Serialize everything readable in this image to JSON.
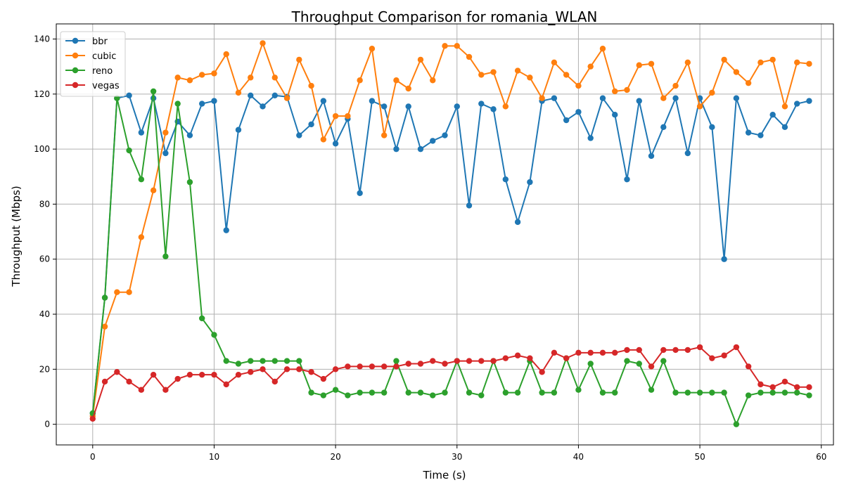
{
  "chart_data": {
    "type": "line",
    "title": "Throughput Comparison for romania_WLAN",
    "xlabel": "Time (s)",
    "ylabel": "Throughput (Mbps)",
    "xlim": [
      -3,
      61
    ],
    "ylim": [
      -7.5,
      145.5
    ],
    "xticks": [
      0,
      10,
      20,
      30,
      40,
      50,
      60
    ],
    "yticks": [
      0,
      20,
      40,
      60,
      80,
      100,
      120,
      140
    ],
    "grid": true,
    "legend": "top-left",
    "x": [
      0,
      1,
      2,
      3,
      4,
      5,
      6,
      7,
      8,
      9,
      10,
      11,
      12,
      13,
      14,
      15,
      16,
      17,
      18,
      19,
      20,
      21,
      22,
      23,
      24,
      25,
      26,
      27,
      28,
      29,
      30,
      31,
      32,
      33,
      34,
      35,
      36,
      37,
      38,
      39,
      40,
      41,
      42,
      43,
      44,
      45,
      46,
      47,
      48,
      49,
      50,
      51,
      52,
      53,
      54,
      55,
      56,
      57,
      58,
      59
    ],
    "series": [
      {
        "name": "bbr",
        "color": "#1f77b4",
        "values": [
          4,
          46,
          118.5,
          119.5,
          106,
          118.5,
          98.5,
          110,
          105,
          116.5,
          117.5,
          70.5,
          107,
          119.5,
          115.5,
          119.5,
          119,
          105,
          109,
          117.5,
          102,
          111,
          84,
          117.5,
          115.5,
          100,
          115.5,
          100,
          103,
          105,
          115.5,
          79.5,
          116.5,
          114.5,
          89,
          73.5,
          88,
          117.5,
          118.5,
          110.5,
          113.5,
          104,
          118.5,
          112.5,
          89,
          117.5,
          97.5,
          108,
          118.5,
          98.5,
          118.5,
          108,
          60,
          118.5,
          106,
          105,
          112.5,
          108,
          116.5,
          117.5
        ]
      },
      {
        "name": "cubic",
        "color": "#ff7f0e",
        "values": [
          3,
          35.5,
          48,
          48,
          68,
          85,
          106,
          126,
          125,
          127,
          127.5,
          134.5,
          120.5,
          126,
          138.5,
          126,
          118.5,
          132.5,
          123,
          103.5,
          112,
          112,
          125,
          136.5,
          105,
          125,
          122,
          132.5,
          125,
          137.5,
          137.5,
          133.5,
          127,
          128,
          115.5,
          128.5,
          126,
          118.5,
          131.5,
          127,
          123,
          130,
          136.5,
          121,
          121.5,
          130.5,
          131,
          118.5,
          123,
          131.5,
          115.5,
          120.5,
          132.5,
          128,
          124,
          131.5,
          132.5,
          115.5,
          131.5,
          131
        ]
      },
      {
        "name": "reno",
        "color": "#2ca02c",
        "values": [
          4,
          46,
          118.5,
          99.5,
          89,
          121,
          61,
          116.5,
          88,
          38.5,
          32.5,
          23,
          22,
          23,
          23,
          23,
          23,
          23,
          11.5,
          10.5,
          12.5,
          10.5,
          11.5,
          11.5,
          11.5,
          23,
          11.5,
          11.5,
          10.5,
          11.5,
          23,
          11.5,
          10.5,
          23,
          11.5,
          11.5,
          23,
          11.5,
          11.5,
          24,
          12.5,
          22,
          11.5,
          11.5,
          23,
          22,
          12.5,
          23,
          11.5,
          11.5,
          11.5,
          11.5,
          11.5,
          0,
          10.5,
          11.5,
          11.5,
          11.5,
          11.5,
          10.5
        ]
      },
      {
        "name": "vegas",
        "color": "#d62728",
        "values": [
          2,
          15.5,
          19,
          15.5,
          12.5,
          18,
          12.5,
          16.5,
          18,
          18,
          18,
          14.5,
          18,
          19,
          20,
          15.5,
          20,
          20,
          19,
          16.5,
          20,
          21,
          21,
          21,
          21,
          21,
          22,
          22,
          23,
          22,
          23,
          23,
          23,
          23,
          24,
          25,
          24,
          19,
          26,
          24,
          26,
          26,
          26,
          26,
          27,
          27,
          21,
          27,
          27,
          27,
          28,
          24,
          25,
          28,
          21,
          14.5,
          13.5,
          15.5,
          13.5,
          13.5
        ]
      }
    ]
  }
}
